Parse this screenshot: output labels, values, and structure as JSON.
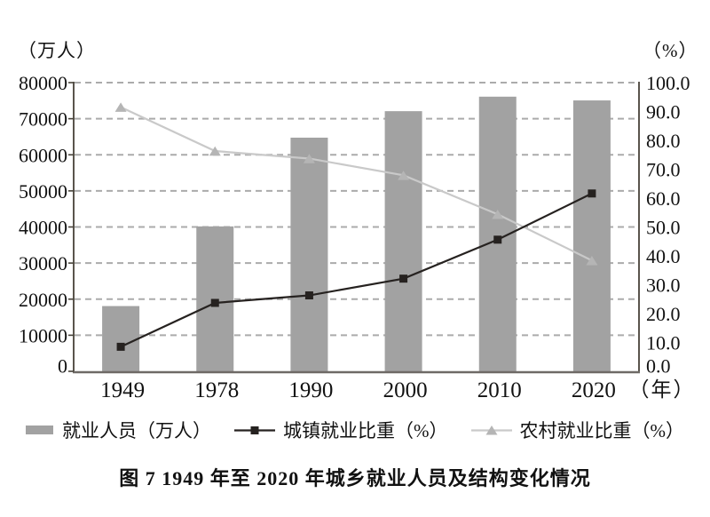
{
  "axis_units": {
    "left": "（万人）",
    "right": "（%）",
    "x": "（年）"
  },
  "caption": "图 7  1949 年至 2020 年城乡就业人员及结构变化情况",
  "legend": {
    "employment_label": "就业人员（万人）",
    "urban_label": "城镇就业比重（%）",
    "rural_label": "农村就业比重（%）"
  },
  "colors": {
    "bar": "#a2a2a2",
    "urban_line": "#262220",
    "urban_marker": "#262220",
    "rural_line": "#c9c9c9",
    "rural_marker": "#b5b5b5",
    "grid": "#ababab",
    "axis": "#474239",
    "baseline": "#6e6a66"
  },
  "chart_data": {
    "type": "bar+line",
    "title": "图 7  1949 年至 2020 年城乡就业人员及结构变化情况",
    "categories": [
      "1949",
      "1978",
      "1990",
      "2000",
      "2010",
      "2020"
    ],
    "series": [
      {
        "name": "就业人员（万人）",
        "type": "bar",
        "axis": "left",
        "values": [
          18082,
          40152,
          64749,
          72085,
          76105,
          75064
        ]
      },
      {
        "name": "城镇就业比重（%）",
        "type": "line",
        "marker": "square",
        "axis": "right",
        "values": [
          8.5,
          23.7,
          26.3,
          32.1,
          45.6,
          61.6
        ]
      },
      {
        "name": "农村就业比重（%）",
        "type": "line",
        "marker": "triangle",
        "axis": "right",
        "values": [
          91.5,
          76.3,
          73.7,
          67.9,
          54.4,
          38.4
        ]
      }
    ],
    "left_axis": {
      "min": 0,
      "max": 80000,
      "step": 10000,
      "unit": "（万人）",
      "tick_labels": [
        "0",
        "10000",
        "20000",
        "30000",
        "40000",
        "50000",
        "60000",
        "70000",
        "80000"
      ]
    },
    "right_axis": {
      "min": 0,
      "max": 100,
      "step": 10,
      "unit": "（%）",
      "tick_labels": [
        "0.0",
        "10.0",
        "20.0",
        "30.0",
        "40.0",
        "50.0",
        "60.0",
        "70.0",
        "80.0",
        "90.0",
        "100.0"
      ]
    },
    "x_axis": {
      "unit": "（年）"
    },
    "grid": "dashed-horizontal-at-left-axis-steps",
    "legend_position": "bottom"
  }
}
